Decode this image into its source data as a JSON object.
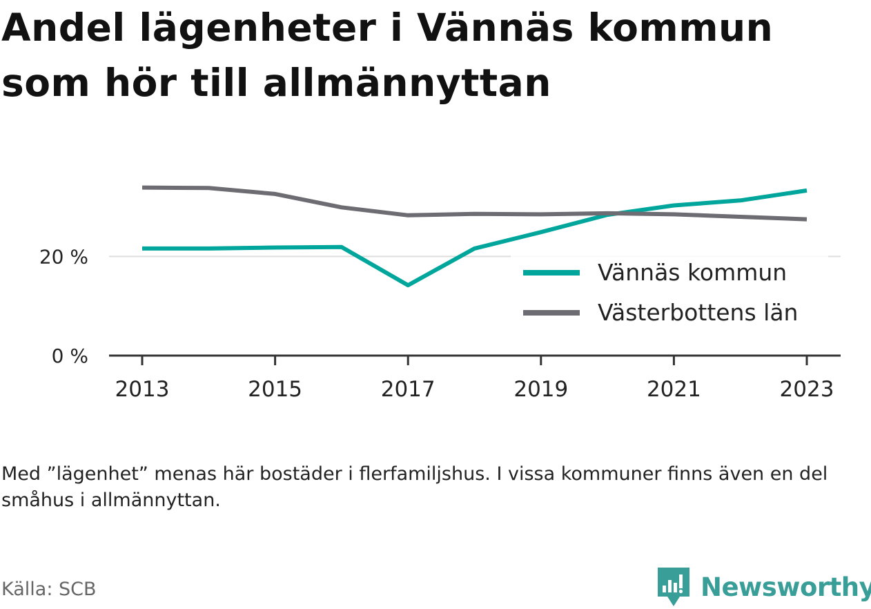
{
  "title": "Andel lägenheter i Vännäs kommun som hör till allmännyttan",
  "note": "Med ”lägenhet” menas här bostäder i flerfamiljshus. I vissa kommuner finns även en del småhus i allmännyttan.",
  "source": "Källa: SCB",
  "brand": {
    "name": "Newsworthy",
    "logo_icon": "newsworthy-chart-icon",
    "color": "#3a9e98"
  },
  "colors": {
    "series_1": "#00a69c",
    "series_2": "#6d6c72",
    "grid": "#dddddd",
    "axis": "#333333"
  },
  "chart_data": {
    "type": "line",
    "title": "Andel lägenheter i Vännäs kommun som hör till allmännyttan",
    "xlabel": "",
    "ylabel": "",
    "x": [
      2013,
      2014,
      2015,
      2016,
      2017,
      2018,
      2019,
      2020,
      2021,
      2022,
      2023
    ],
    "x_ticks": [
      "2013",
      "2015",
      "2017",
      "2019",
      "2021",
      "2023"
    ],
    "y_ticks": [
      {
        "value": 0,
        "label": "0 %"
      },
      {
        "value": 20,
        "label": "20 %"
      }
    ],
    "ylim": [
      0,
      39
    ],
    "xlim": [
      2012.5,
      2023.5
    ],
    "grid": true,
    "legend_position": "right",
    "series": [
      {
        "name": "Vännäs kommun",
        "color": "#00a69c",
        "values": [
          21.6,
          21.6,
          21.8,
          21.9,
          14.2,
          21.6,
          24.9,
          28.4,
          30.3,
          31.3,
          33.3
        ]
      },
      {
        "name": "Västerbottens län",
        "color": "#6d6c72",
        "values": [
          33.9,
          33.8,
          32.6,
          29.9,
          28.3,
          28.6,
          28.5,
          28.7,
          28.5,
          28.0,
          27.5
        ]
      }
    ]
  }
}
